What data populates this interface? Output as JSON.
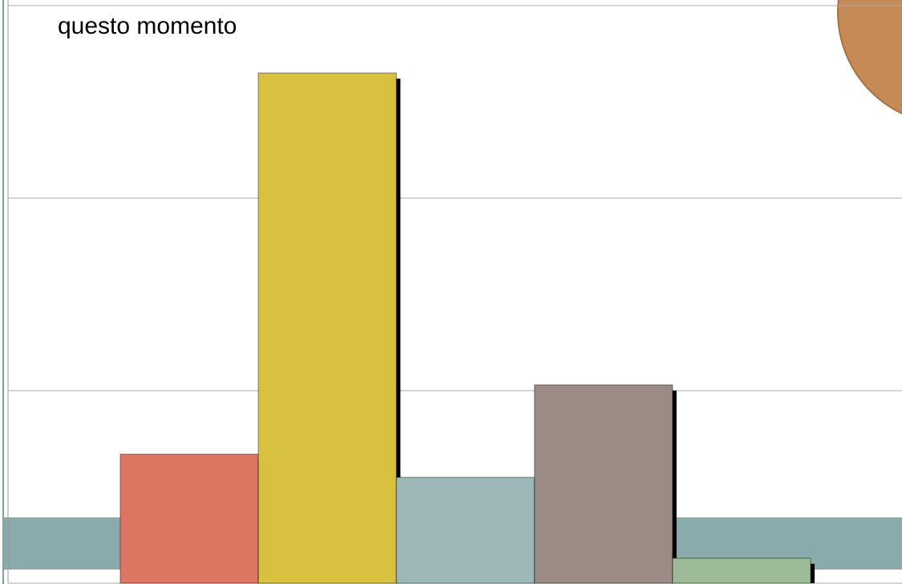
{
  "chart_data": {
    "type": "bar",
    "title": "questo momento",
    "categories": [
      null,
      null,
      null,
      null,
      null
    ],
    "values": [
      0.67,
      2.65,
      0.55,
      1.03,
      0.13
    ],
    "colors": [
      "#dd7563",
      "#d8c13f",
      "#9cb8b9",
      "#9c8b84",
      "#9dbb96"
    ],
    "ylim": [
      0,
      3
    ],
    "yticks": [
      0,
      1,
      2,
      3
    ],
    "grid": true
  }
}
